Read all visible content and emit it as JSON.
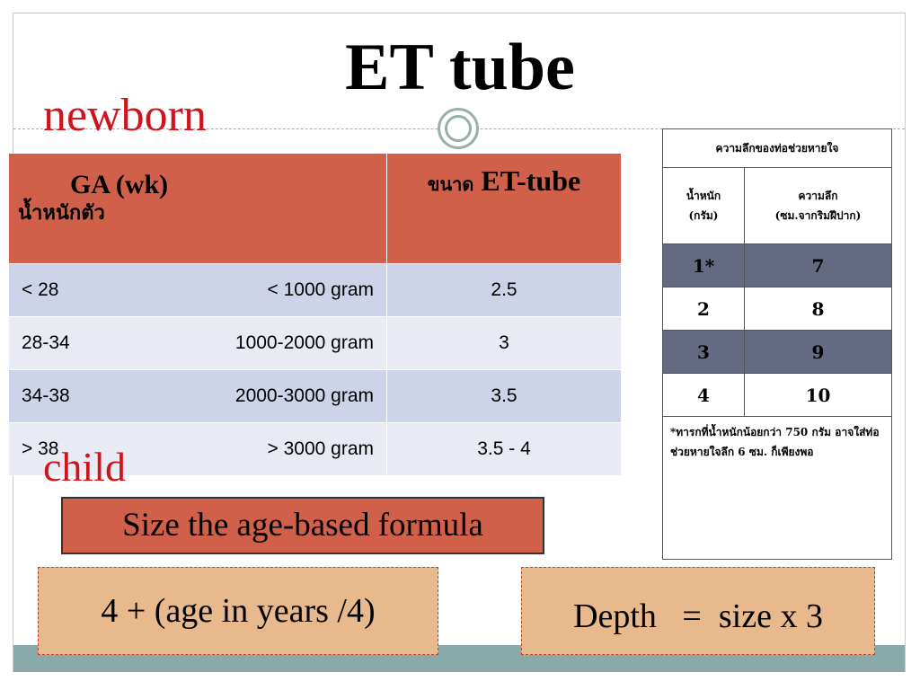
{
  "title": "ET tube",
  "labels": {
    "newborn": "newborn",
    "child": "child"
  },
  "newborn_table": {
    "header": {
      "ga": "GA (wk)",
      "weight": "น้ำหนักตัว",
      "size_thai": "ขนาด",
      "size": "ET-tube"
    },
    "rows": [
      {
        "ga": "< 28",
        "weight": "< 1000 gram",
        "size": "2.5"
      },
      {
        "ga": "28-34",
        "weight": "1000-2000 gram",
        "size": "3"
      },
      {
        "ga": "34-38",
        "weight": "2000-3000 gram",
        "size": "3.5"
      },
      {
        "ga": "> 38",
        "weight": "> 3000 gram",
        "size": "3.5 - 4"
      }
    ]
  },
  "depth_table": {
    "title": "ความลึกของท่อช่วยหายใจ",
    "col_weight": [
      "น้ำหนัก",
      "(กรัม)"
    ],
    "col_depth": [
      "ความลึก",
      "(ซม.จากริมฝีปาก)"
    ],
    "rows": [
      {
        "weight": "1*",
        "depth": "7"
      },
      {
        "weight": "2",
        "depth": "8"
      },
      {
        "weight": "3",
        "depth": "9"
      },
      {
        "weight": "4",
        "depth": "10"
      }
    ],
    "note": "*ทารกที่น้ำหนักน้อยกว่า 750 กรัม อาจใส่ท่อช่วยหายใจลึก 6 ซม. ก็เพียงพอ"
  },
  "size_formula_label": "Size  the age-based formula",
  "formula": "4 + (age in years /4)",
  "depth_formula": "Depth   =  size x 3"
}
